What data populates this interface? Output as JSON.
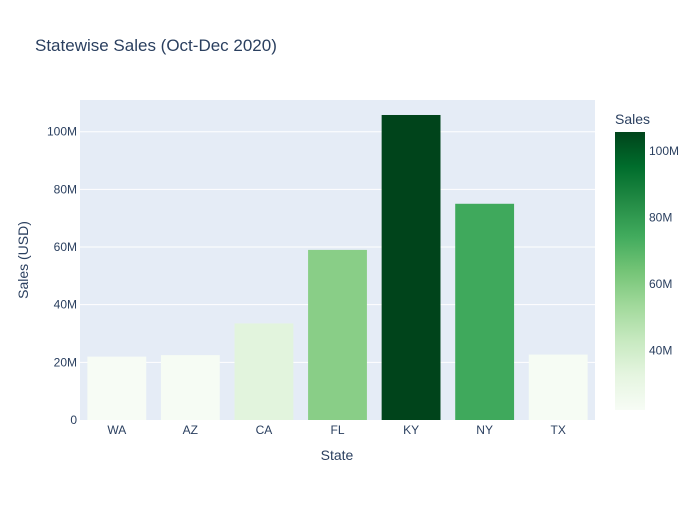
{
  "chart_data": {
    "type": "bar",
    "title": "Statewise Sales (Oct-Dec 2020)",
    "xlabel": "State",
    "ylabel": "Sales (USD)",
    "categories": [
      "WA",
      "AZ",
      "CA",
      "FL",
      "KY",
      "NY",
      "TX"
    ],
    "values": [
      22000000,
      22500000,
      33500000,
      59000000,
      105800000,
      75000000,
      22700000
    ],
    "ylim": [
      0,
      111000000
    ],
    "y_ticks": [
      0,
      20000000,
      40000000,
      60000000,
      80000000,
      100000000
    ],
    "y_tick_labels": [
      "0",
      "20M",
      "40M",
      "60M",
      "80M",
      "100M"
    ],
    "grid": true,
    "colorbar": {
      "title": "Sales",
      "range": [
        22000000,
        105800000
      ],
      "ticks": [
        40000000,
        60000000,
        80000000,
        100000000
      ],
      "tick_labels": [
        "40M",
        "60M",
        "80M",
        "100M"
      ],
      "colorscale": [
        "#f7fcf5",
        "#e5f5e0",
        "#c7e9c0",
        "#a1d99b",
        "#74c476",
        "#41ab5d",
        "#238b45",
        "#006d2c",
        "#00441b"
      ]
    },
    "colors": {
      "plot_background": "#e5ecf6",
      "grid": "#ffffff",
      "text": "#2a3f5f"
    }
  }
}
